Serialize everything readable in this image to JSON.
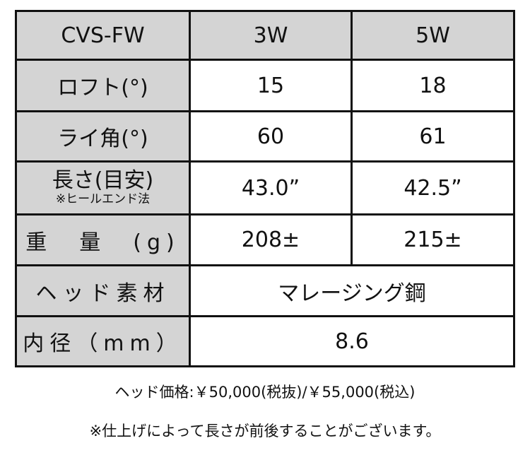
{
  "table": {
    "header": [
      "CVS-FW",
      "3W",
      "5W"
    ],
    "rows": [
      {
        "label": "ロフト(°)",
        "values": [
          "15",
          "18"
        ]
      },
      {
        "label": "ライ角(°)",
        "values": [
          "60",
          "61"
        ]
      },
      {
        "label": "長さ(目安)",
        "sublabel": "※ヒールエンド法",
        "values": [
          "43.0”",
          "42.5”"
        ]
      },
      {
        "label": "重　量　(g)",
        "values": [
          "208±",
          "215±"
        ]
      },
      {
        "label": "ヘッド素材",
        "value": "マレージング鋼"
      },
      {
        "label": "内径（mm）",
        "value": "8.6"
      }
    ]
  },
  "footer": {
    "price": "ヘッド価格:￥50,000(税抜)/￥55,000(税込)",
    "note": "※仕上げによって長さが前後することがございます。"
  },
  "colors": {
    "header_bg": "#d4d4d4",
    "border": "#111111"
  }
}
